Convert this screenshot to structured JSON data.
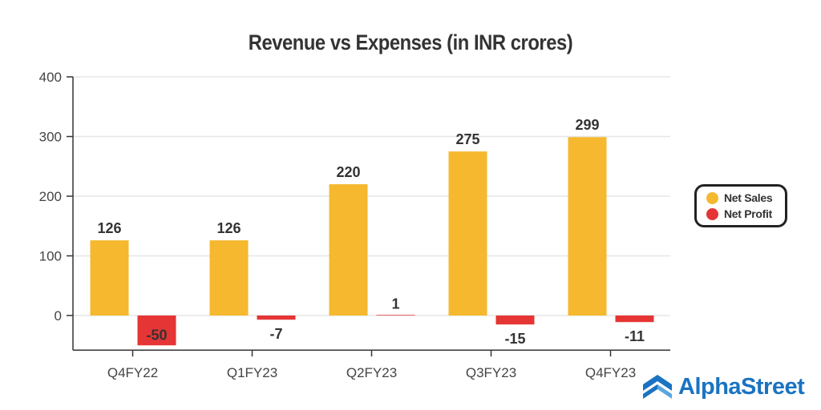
{
  "chart_data": {
    "type": "bar",
    "title": "Revenue vs Expenses (in INR crores)",
    "xlabel": "",
    "ylabel": "",
    "categories": [
      "Q4FY22",
      "Q1FY23",
      "Q2FY23",
      "Q3FY23",
      "Q4FY23"
    ],
    "series": [
      {
        "name": "Net Sales",
        "color": "#f5b82e",
        "values": [
          126,
          126,
          220,
          275,
          299
        ]
      },
      {
        "name": "Net Profit",
        "color": "#e53535",
        "values": [
          -50,
          -7,
          1,
          -15,
          -11
        ]
      }
    ],
    "ylim": [
      -58,
      400
    ],
    "yticks": [
      0,
      100,
      200,
      300,
      400
    ],
    "grid": true,
    "legend_position": "right"
  },
  "brand": {
    "name": "AlphaStreet",
    "icon": "alphastreet-logo-icon",
    "color": "#1a73c2"
  }
}
